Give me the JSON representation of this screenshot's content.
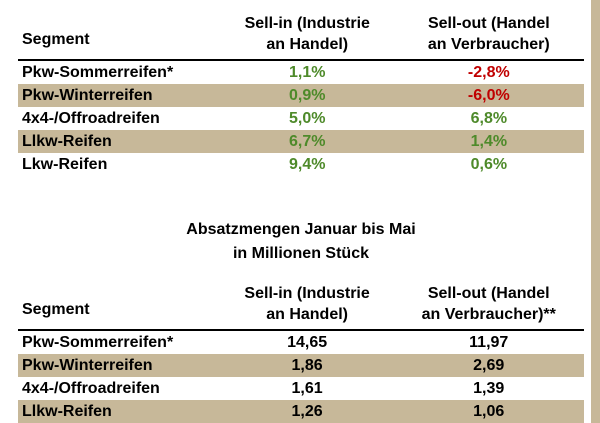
{
  "table1": {
    "headers": {
      "segment": "Segment",
      "sellin_l1": "Sell-in (Industrie",
      "sellin_l2": "an Handel)",
      "sellout_l1": "Sell-out (Handel",
      "sellout_l2": "an Verbraucher)"
    },
    "rows": [
      {
        "segment": "Pkw-Sommerreifen*",
        "sellin": "1,1%",
        "sellout": "-2,8%"
      },
      {
        "segment": "Pkw-Winterreifen",
        "sellin": "0,9%",
        "sellout": "-6,0%"
      },
      {
        "segment": "4x4-/Offroadreifen",
        "sellin": "5,0%",
        "sellout": "6,8%"
      },
      {
        "segment": "Llkw-Reifen",
        "sellin": "6,7%",
        "sellout": "1,4%"
      },
      {
        "segment": "Lkw-Reifen",
        "sellin": "9,4%",
        "sellout": "0,6%"
      }
    ]
  },
  "title2": {
    "line1": "Absatzmengen Januar bis Mai",
    "line2": "in Millionen Stück"
  },
  "table2": {
    "headers": {
      "segment": "Segment",
      "sellin_l1": "Sell-in (Industrie",
      "sellin_l2": "an Handel)",
      "sellout_l1": "Sell-out (Handel",
      "sellout_l2": "an Verbraucher)**"
    },
    "rows": [
      {
        "segment": "Pkw-Sommerreifen*",
        "sellin": "14,65",
        "sellout": "11,97"
      },
      {
        "segment": "Pkw-Winterreifen",
        "sellin": "1,86",
        "sellout": "2,69"
      },
      {
        "segment": "4x4-/Offroadreifen",
        "sellin": "1,61",
        "sellout": "1,39"
      },
      {
        "segment": "Llkw-Reifen",
        "sellin": "1,26",
        "sellout": "1,06"
      }
    ]
  },
  "colors": {
    "shade": "#c7b899",
    "positive": "#4e8a2a",
    "negative": "#c00000"
  }
}
